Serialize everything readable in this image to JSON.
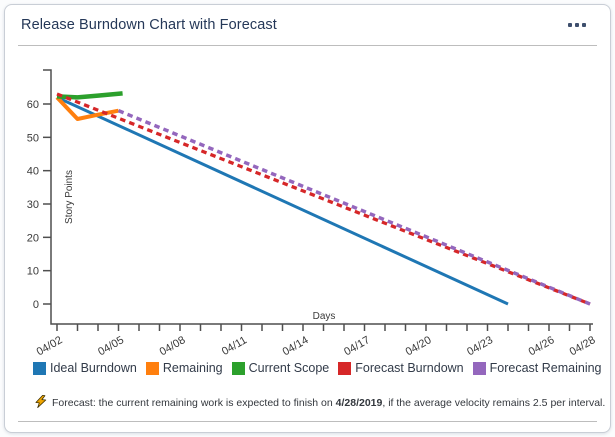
{
  "card": {
    "title": "Release Burndown Chart with Forecast",
    "title_color": "#253858",
    "menu_icon": "ellipsis-icon"
  },
  "chart_data": {
    "type": "line",
    "title": "Release Burndown Chart with Forecast",
    "xlabel": "Days",
    "ylabel": "Story Points",
    "ylim": [
      0,
      70
    ],
    "y_ticks": [
      0,
      10,
      20,
      30,
      40,
      50,
      60
    ],
    "xlim_days": [
      0,
      26
    ],
    "x_tick_interval_days": 1,
    "x_ticks": [
      {
        "day": 0,
        "label": "04/02"
      },
      {
        "day": 3,
        "label": "04/05"
      },
      {
        "day": 6,
        "label": "04/08"
      },
      {
        "day": 9,
        "label": "04/11"
      },
      {
        "day": 12,
        "label": "04/14"
      },
      {
        "day": 15,
        "label": "04/17"
      },
      {
        "day": 18,
        "label": "04/20"
      },
      {
        "day": 21,
        "label": "04/23"
      },
      {
        "day": 24,
        "label": "04/26"
      },
      {
        "day": 26,
        "label": "04/28"
      }
    ],
    "grid": false,
    "legend_position": "bottom",
    "series": [
      {
        "name": "Ideal Burndown",
        "color": "#1f77b4",
        "style": "solid",
        "width": 3,
        "points": [
          {
            "day": 0,
            "date": "04/02",
            "value": 62
          },
          {
            "day": 22,
            "date": "04/24",
            "value": 0
          }
        ]
      },
      {
        "name": "Remaining",
        "color": "#ff7f0e",
        "style": "solid",
        "width": 4,
        "points": [
          {
            "day": 0,
            "date": "04/02",
            "value": 62
          },
          {
            "day": 1,
            "date": "04/03",
            "value": 55.5
          },
          {
            "day": 2,
            "date": "04/04",
            "value": 56.8
          },
          {
            "day": 3,
            "date": "04/05",
            "value": 58
          }
        ]
      },
      {
        "name": "Current Scope",
        "color": "#2ca02c",
        "style": "solid",
        "width": 4.5,
        "points": [
          {
            "day": 0,
            "date": "04/02",
            "value": 62.3
          },
          {
            "day": 1,
            "date": "04/03",
            "value": 62
          },
          {
            "day": 2,
            "date": "04/04",
            "value": 62.5
          },
          {
            "day": 3.2,
            "date": "04/05",
            "value": 63.2
          }
        ]
      },
      {
        "name": "Forecast Burndown",
        "color": "#d62728",
        "style": "dashed",
        "width": 3.3,
        "points": [
          {
            "day": 0,
            "date": "04/02",
            "value": 63
          },
          {
            "day": 26,
            "date": "04/28",
            "value": 0
          }
        ]
      },
      {
        "name": "Forecast Remaining",
        "color": "#9467bd",
        "style": "dashed",
        "width": 3.5,
        "points": [
          {
            "day": 3,
            "date": "04/05",
            "value": 58
          },
          {
            "day": 26,
            "date": "04/28",
            "value": 0
          }
        ]
      }
    ]
  },
  "footer": {
    "icon": "lightning-bolt-icon",
    "text_before": "Forecast: the current remaining work is expected to finish on ",
    "date": "4/28/2019",
    "text_after": ", if the average velocity remains 2.5 per interval."
  }
}
